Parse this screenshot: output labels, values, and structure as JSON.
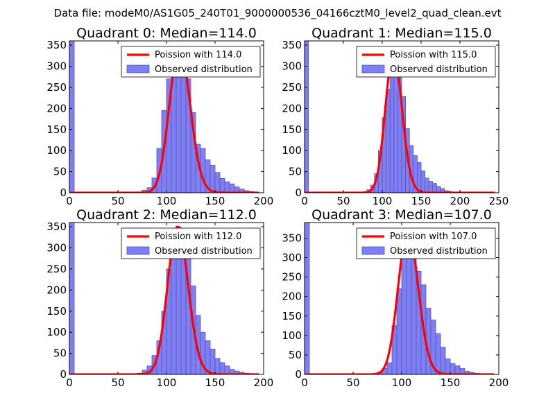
{
  "figure": {
    "title": "Data file: modeM0/AS1G05_240T01_9000000536_04166cztM0_level2_quad_clean.evt",
    "colors": {
      "observed_fill": "#7f7ff5",
      "observed_edge": "#5555aa",
      "poisson": "#ff0000"
    }
  },
  "chart_data": [
    {
      "type": "bar",
      "title": "Quadrant 0: Median=114.0",
      "median": 114.0,
      "xlim": [
        0,
        200
      ],
      "ylim": [
        0,
        360
      ],
      "xticks": [
        0,
        50,
        100,
        150,
        200
      ],
      "yticks": [
        0,
        50,
        100,
        150,
        200,
        250,
        300,
        350
      ],
      "bin_width": 5,
      "bins": [
        0,
        70,
        75,
        80,
        85,
        90,
        95,
        100,
        105,
        110,
        115,
        120,
        125,
        130,
        135,
        140,
        145,
        150,
        155,
        160,
        165,
        170,
        175,
        180,
        185,
        190
      ],
      "counts": [
        360,
        2,
        6,
        12,
        35,
        105,
        195,
        270,
        320,
        345,
        328,
        270,
        190,
        115,
        105,
        78,
        65,
        48,
        34,
        26,
        21,
        14,
        9,
        5,
        3,
        1
      ],
      "legend": {
        "poisson": "Poission with 114.0",
        "observed": "Observed distribution",
        "location": "top-right"
      }
    },
    {
      "type": "bar",
      "title": "Quadrant 1: Median=115.0",
      "median": 115.0,
      "xlim": [
        0,
        250
      ],
      "ylim": [
        0,
        360
      ],
      "xticks": [
        0,
        50,
        100,
        150,
        200,
        250
      ],
      "yticks": [
        0,
        50,
        100,
        150,
        200,
        250,
        300,
        350
      ],
      "bin_width": 5,
      "bins": [
        0,
        75,
        80,
        85,
        90,
        95,
        100,
        105,
        110,
        115,
        120,
        125,
        130,
        135,
        140,
        145,
        150,
        155,
        160,
        165,
        170,
        175,
        180,
        185,
        190
      ],
      "counts": [
        360,
        3,
        7,
        18,
        45,
        100,
        178,
        245,
        300,
        330,
        295,
        228,
        152,
        112,
        88,
        72,
        52,
        35,
        27,
        22,
        15,
        10,
        5,
        3,
        1
      ],
      "legend": {
        "poisson": "Poission with 115.0",
        "observed": "Observed distribution",
        "location": "top-right"
      }
    },
    {
      "type": "bar",
      "title": "Quadrant 2: Median=112.0",
      "median": 112.0,
      "xlim": [
        0,
        200
      ],
      "ylim": [
        0,
        360
      ],
      "xticks": [
        0,
        50,
        100,
        150,
        200
      ],
      "yticks": [
        0,
        50,
        100,
        150,
        200,
        250,
        300,
        350
      ],
      "bin_width": 5,
      "bins": [
        0,
        70,
        75,
        80,
        85,
        90,
        95,
        100,
        105,
        110,
        115,
        120,
        125,
        130,
        135,
        140,
        145,
        150,
        155,
        160,
        165,
        170,
        175,
        180,
        185,
        190
      ],
      "counts": [
        360,
        3,
        10,
        20,
        45,
        80,
        150,
        250,
        310,
        350,
        330,
        280,
        210,
        140,
        100,
        80,
        60,
        38,
        28,
        20,
        12,
        8,
        5,
        3,
        2,
        1
      ],
      "legend": {
        "poisson": "Poission with 112.0",
        "observed": "Observed distribution",
        "location": "top-right"
      }
    },
    {
      "type": "bar",
      "title": "Quadrant 3: Median=107.0",
      "median": 107.0,
      "xlim": [
        0,
        200
      ],
      "ylim": [
        0,
        390
      ],
      "xticks": [
        0,
        50,
        100,
        150,
        200
      ],
      "yticks": [
        0,
        50,
        100,
        150,
        200,
        250,
        300,
        350
      ],
      "bin_width": 5,
      "bins": [
        0,
        20,
        45,
        70,
        75,
        80,
        85,
        90,
        95,
        100,
        105,
        110,
        115,
        120,
        125,
        130,
        135,
        140,
        145,
        150,
        155,
        160,
        165,
        170,
        175,
        180,
        185
      ],
      "counts": [
        390,
        1,
        1,
        2,
        6,
        15,
        30,
        125,
        220,
        300,
        370,
        320,
        265,
        230,
        170,
        140,
        105,
        70,
        40,
        28,
        22,
        15,
        8,
        5,
        3,
        2,
        1
      ],
      "legend": {
        "poisson": "Poission with 107.0",
        "observed": "Observed distribution",
        "location": "top-right"
      }
    }
  ]
}
